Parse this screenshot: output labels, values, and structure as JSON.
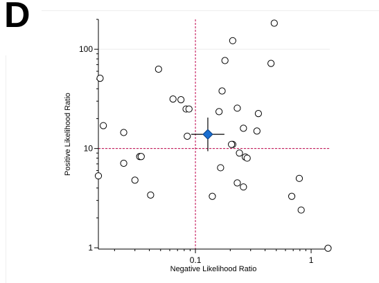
{
  "panel_label": "D",
  "chart_data": {
    "type": "scatter",
    "xlabel": "Negative Likelihood Ratio",
    "ylabel": "Positive Likelihood Ratio",
    "x_scale": "log",
    "y_scale": "log",
    "xlim": [
      0.0145,
      1.45
    ],
    "ylim": [
      0.97,
      200
    ],
    "x_ticks": [
      {
        "value": 0.1,
        "label": "0.1"
      },
      {
        "value": 1,
        "label": "1"
      }
    ],
    "y_ticks": [
      {
        "value": 1,
        "label": "1"
      },
      {
        "value": 10,
        "label": "10"
      },
      {
        "value": 100,
        "label": "100"
      }
    ],
    "reference_lines": {
      "x": 0.1,
      "y": 10,
      "color": "#c0004a",
      "style": "dashed"
    },
    "grid": "horizontal-light",
    "points": [
      {
        "x": 0.48,
        "y": 183
      },
      {
        "x": 0.21,
        "y": 122
      },
      {
        "x": 0.18,
        "y": 77
      },
      {
        "x": 0.45,
        "y": 72
      },
      {
        "x": 0.048,
        "y": 63
      },
      {
        "x": 0.015,
        "y": 51
      },
      {
        "x": 0.17,
        "y": 38
      },
      {
        "x": 0.064,
        "y": 31.5
      },
      {
        "x": 0.075,
        "y": 31
      },
      {
        "x": 0.083,
        "y": 25
      },
      {
        "x": 0.088,
        "y": 25
      },
      {
        "x": 0.23,
        "y": 25.5
      },
      {
        "x": 0.16,
        "y": 23.5
      },
      {
        "x": 0.35,
        "y": 22.5
      },
      {
        "x": 0.016,
        "y": 17
      },
      {
        "x": 0.26,
        "y": 16
      },
      {
        "x": 0.34,
        "y": 15
      },
      {
        "x": 0.024,
        "y": 14.5
      },
      {
        "x": 0.085,
        "y": 13.3
      },
      {
        "x": 0.21,
        "y": 11
      },
      {
        "x": 0.205,
        "y": 11
      },
      {
        "x": 0.24,
        "y": 9
      },
      {
        "x": 0.033,
        "y": 8.3
      },
      {
        "x": 0.034,
        "y": 8.3
      },
      {
        "x": 0.27,
        "y": 8.2
      },
      {
        "x": 0.28,
        "y": 8.0
      },
      {
        "x": 0.024,
        "y": 7.1
      },
      {
        "x": 0.165,
        "y": 6.4
      },
      {
        "x": 0.0145,
        "y": 5.3
      },
      {
        "x": 0.03,
        "y": 4.8
      },
      {
        "x": 0.79,
        "y": 5.0
      },
      {
        "x": 0.23,
        "y": 4.5
      },
      {
        "x": 0.26,
        "y": 4.1
      },
      {
        "x": 0.041,
        "y": 3.4
      },
      {
        "x": 0.14,
        "y": 3.3
      },
      {
        "x": 0.68,
        "y": 3.3
      },
      {
        "x": 0.82,
        "y": 2.4
      },
      {
        "x": 1.4,
        "y": 0.99
      }
    ],
    "summary": {
      "x": 0.128,
      "y": 13.9,
      "x_ci": [
        0.092,
        0.178
      ],
      "y_ci": [
        9.4,
        20.5
      ],
      "color": "#1a6fd1"
    }
  }
}
